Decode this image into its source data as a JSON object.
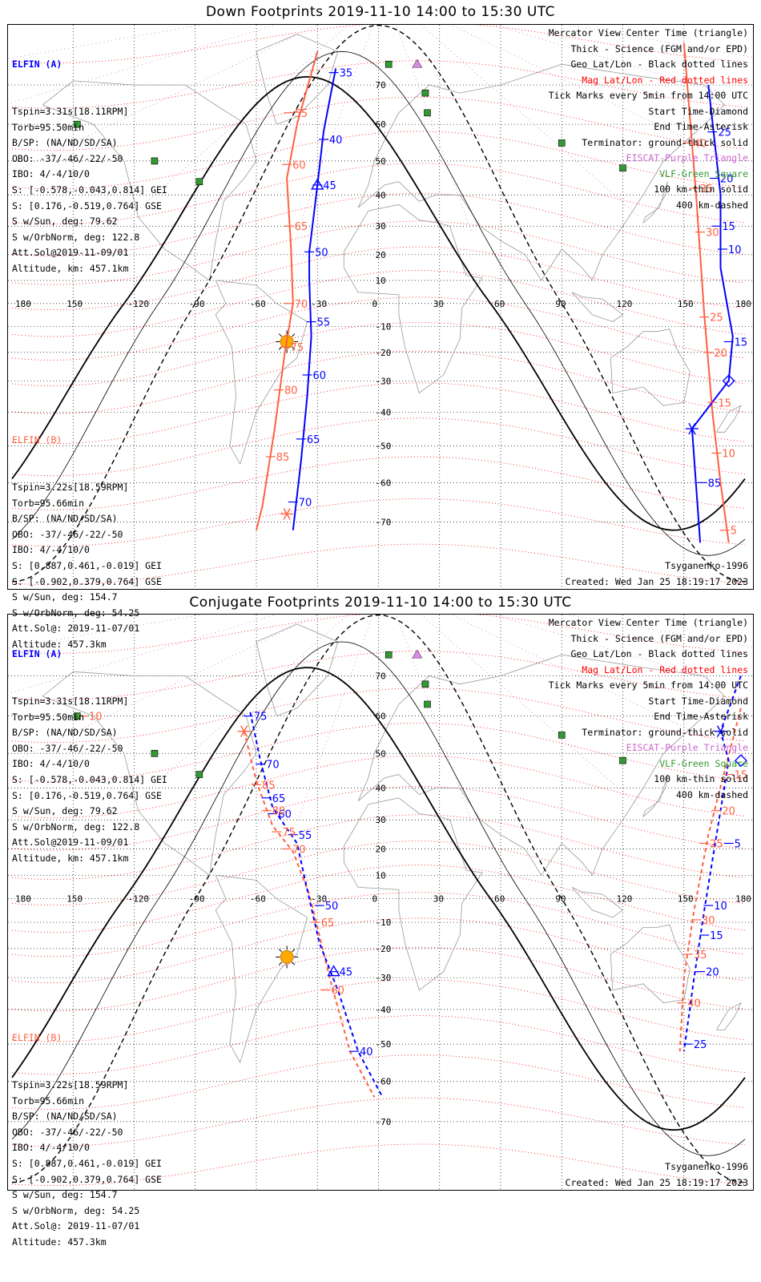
{
  "colors": {
    "elfin_a": "#0000ff",
    "elfin_b": "#ff6040",
    "mag": "#ff0000",
    "eiscat": "#cc66cc",
    "vlf": "#339933",
    "sun": "#ffaa00"
  },
  "lon_labels": [
    "180",
    "150",
    "-120",
    "-90",
    "-60",
    "-30",
    "0",
    "30",
    "60",
    "90",
    "120",
    "150",
    "180"
  ],
  "lat_labels": [
    "70",
    "60",
    "50",
    "40",
    "30",
    "20",
    "10",
    "-10",
    "-20",
    "-30",
    "-40",
    "-50",
    "-60",
    "-70"
  ],
  "legend": [
    "Mercator View Center Time (triangle)",
    "Thick - Science (FGM and/or EPD)",
    "Geo Lat/Lon - Black dotted lines",
    "Mag Lat/Lon - Red dotted lines",
    "Tick Marks every 5min from 14:00 UTC",
    "Start Time-Diamond",
    "End Time-Asterisk",
    "Terminator: ground-thick solid",
    "EISCAT-Purple Triangle",
    "VLF-Green Square",
    "100 km-thin solid",
    "400 km-dashed"
  ],
  "elfin_a": {
    "name": "ELFIN (A)",
    "lines": [
      "Tspin=3.31s[18.11RPM]",
      "Torb=95.50min",
      "B/SP: (NA/ND/SD/SA)",
      "OBO: -37/-46/-22/-50",
      "IBO: 4/-4/10/0",
      "S: [-0.578,-0.043,0.814] GEI",
      "S: [0.176,-0.519,0.764] GSE",
      "S w/Sun, deg: 79.62",
      "S w/OrbNorm, deg: 122.8",
      "Att.Sol@2019-11-09/01",
      "Altitude, km: 457.1km"
    ]
  },
  "elfin_b": {
    "name": "ELFIN (B)",
    "lines": [
      "Tspin=3.22s[18.59RPM]",
      "Torb=95.66min",
      "B/SP: (NA/ND/SD/SA)",
      "OBO: -37/-46/-22/-50",
      "IBO: 4/-4/10/0",
      "S: [0.887,0.461,-0.019] GEI",
      "S: [-0.902,0.379,0.764] GSE",
      "S w/Sun, deg: 154.7",
      "S w/OrbNorm, deg: 54.25",
      "Att.Sol@: 2019-11-07/01",
      "Altitude: 457.3km"
    ]
  },
  "model": "Tsyganenko-1996",
  "created": "Created: Wed Jan 25 18:19:17 2023",
  "down": {
    "title": "Down Footprints 2019-11-10 14:00 to 15:30 UTC",
    "a_track": [
      [
        -21,
        74
      ],
      [
        -27,
        58
      ],
      [
        -30,
        43
      ],
      [
        -34,
        21
      ],
      [
        -34,
        10
      ],
      [
        -33,
        -14
      ],
      [
        -35,
        -35
      ],
      [
        -38,
        -54
      ],
      [
        -42,
        -72
      ]
    ],
    "b_track": [
      [
        -30,
        78
      ],
      [
        -40,
        60
      ],
      [
        -45,
        45
      ],
      [
        -43,
        23
      ],
      [
        -42,
        0
      ],
      [
        -46,
        -20
      ],
      [
        -51,
        -45
      ],
      [
        -57,
        -66
      ],
      [
        -60,
        -72
      ]
    ],
    "a_ticks": [
      [
        "35",
        -22,
        73
      ],
      [
        "40",
        -27,
        56
      ],
      [
        "45",
        -30,
        43
      ],
      [
        "50",
        -34,
        21
      ],
      [
        "55",
        -33,
        -8
      ],
      [
        "60",
        -35,
        -28
      ],
      [
        "65",
        -38,
        -48
      ],
      [
        "70",
        -42,
        -65
      ]
    ],
    "b_ticks": [
      [
        "55",
        -44,
        63
      ],
      [
        "60",
        -45,
        49
      ],
      [
        "65",
        -44,
        30
      ],
      [
        "70",
        -44,
        0
      ],
      [
        "75",
        -46,
        -18
      ],
      [
        "80",
        -49,
        -33
      ],
      [
        "85",
        -53,
        -53
      ]
    ],
    "a2_track": [
      [
        162,
        70
      ],
      [
        168,
        40
      ],
      [
        168,
        15
      ],
      [
        174,
        -14
      ],
      [
        172,
        -30
      ],
      [
        154,
        -45
      ],
      [
        158,
        -75
      ]
    ],
    "b2_track": [
      [
        150,
        80
      ],
      [
        156,
        40
      ],
      [
        158,
        20
      ],
      [
        160,
        -5
      ],
      [
        164,
        -40
      ],
      [
        168,
        -60
      ],
      [
        172,
        -75
      ]
    ],
    "a2_ticks": [
      [
        "25",
        164,
        58
      ],
      [
        "20",
        165,
        45
      ],
      [
        "15",
        166,
        30
      ],
      [
        "10",
        169,
        22
      ],
      [
        "15",
        172,
        -16
      ],
      [
        "85",
        159,
        -60
      ]
    ],
    "b2_ticks": [
      [
        "40",
        152,
        55
      ],
      [
        "35",
        155,
        42
      ],
      [
        "30",
        158,
        28
      ],
      [
        "25",
        160,
        -6
      ],
      [
        "20",
        162,
        -20
      ],
      [
        "15",
        164,
        -37
      ],
      [
        "10",
        166,
        -52
      ],
      [
        "5",
        170,
        -72
      ]
    ]
  },
  "conj": {
    "title": "Conjugate Footprints 2019-11-10 14:00 to 15:30 UTC",
    "a_track": [
      [
        -63,
        61
      ],
      [
        -58,
        48
      ],
      [
        -52,
        34
      ],
      [
        -40,
        22
      ],
      [
        -34,
        0
      ],
      [
        -29,
        -18
      ],
      [
        -20,
        -34
      ],
      [
        -10,
        -52
      ],
      [
        2,
        -64
      ]
    ],
    "b_track": [
      [
        -66,
        56
      ],
      [
        -60,
        42
      ],
      [
        -52,
        28
      ],
      [
        -42,
        19
      ],
      [
        -34,
        2
      ],
      [
        -30,
        -12
      ],
      [
        -24,
        -30
      ],
      [
        -14,
        -52
      ],
      [
        -2,
        -64
      ]
    ],
    "a_ticks": [
      [
        "75",
        -64,
        60
      ],
      [
        "70",
        -58,
        47
      ],
      [
        "65",
        -55,
        37
      ],
      [
        "60",
        -52,
        32
      ],
      [
        "55",
        -42,
        25
      ],
      [
        "50",
        -29,
        -3
      ],
      [
        "45",
        -22,
        -28
      ],
      [
        "40",
        -12,
        -52
      ]
    ],
    "b_ticks": [
      [
        "85",
        -60,
        41
      ],
      [
        "80",
        -55,
        33
      ],
      [
        "75",
        -50,
        26
      ],
      [
        "70",
        -45,
        20
      ],
      [
        "65",
        -31,
        -10
      ],
      [
        "60",
        -26,
        -34
      ]
    ],
    "a2_track": [
      [
        178,
        70
      ],
      [
        168,
        56
      ],
      [
        172,
        48
      ],
      [
        160,
        -5
      ],
      [
        155,
        -30
      ],
      [
        150,
        -52
      ]
    ],
    "b2_track": [
      [
        178,
        62
      ],
      [
        170,
        45
      ],
      [
        162,
        25
      ],
      [
        155,
        -5
      ],
      [
        150,
        -30
      ],
      [
        148,
        -52
      ]
    ],
    "a2_ticks": [
      [
        "5",
        172,
        22
      ],
      [
        "10",
        162,
        -3
      ],
      [
        "15",
        160,
        -15
      ],
      [
        "20",
        158,
        -28
      ],
      [
        "25",
        152,
        -50
      ]
    ],
    "b2_ticks": [
      [
        "15",
        172,
        44
      ],
      [
        "20",
        166,
        33
      ],
      [
        "25",
        160,
        22
      ],
      [
        "30",
        156,
        -9
      ],
      [
        "35",
        152,
        -22
      ],
      [
        "40",
        149,
        -38
      ],
      [
        "10",
        -145,
        60
      ]
    ]
  }
}
